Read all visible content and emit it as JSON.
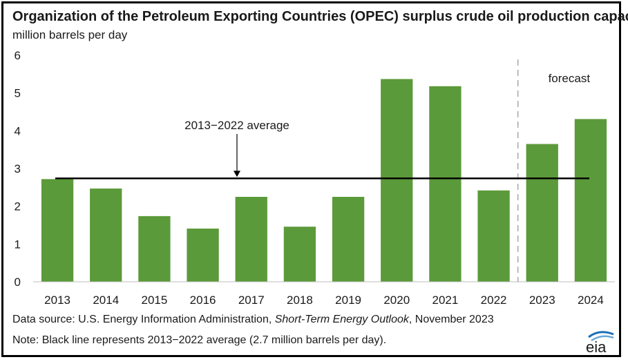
{
  "title": "Organization of the Petroleum Exporting Countries (OPEC) surplus crude oil production capacity",
  "subtitle": "million barrels per day",
  "chart_data": {
    "type": "bar",
    "categories": [
      "2013",
      "2014",
      "2015",
      "2016",
      "2017",
      "2018",
      "2019",
      "2020",
      "2021",
      "2022",
      "2023",
      "2024"
    ],
    "values": [
      2.72,
      2.47,
      1.74,
      1.41,
      2.25,
      1.46,
      2.25,
      5.37,
      5.18,
      2.42,
      3.65,
      4.31
    ],
    "ylim": [
      0,
      6
    ],
    "yticks": [
      "0",
      "1",
      "2",
      "3",
      "4",
      "5",
      "6"
    ],
    "bar_color": "#5b9a3a",
    "average": {
      "value": 2.74,
      "label": "2013−2022 average",
      "color": "#000000"
    },
    "forecast": {
      "label": "forecast",
      "starts_after": "2022"
    },
    "grid": false
  },
  "source": {
    "prefix": "Data source: U.S. Energy Information Administration, ",
    "publication": "Short-Term Energy Outlook",
    "suffix": ", November 2023"
  },
  "note": "Note: Black line represents 2013−2022 average (2.7 million barrels per day).",
  "logo": {
    "text": "eia",
    "icon": "eia-logo"
  }
}
